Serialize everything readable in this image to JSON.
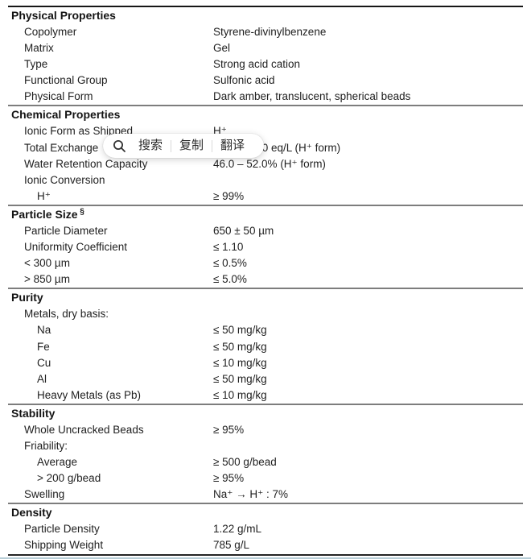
{
  "popup": {
    "items": [
      {
        "label": "搜索"
      },
      {
        "label": "复制"
      },
      {
        "label": "翻译"
      }
    ]
  },
  "table": {
    "sections": [
      {
        "title": "Physical Properties",
        "rows": [
          {
            "label": "Copolymer",
            "value": "Styrene-divinylbenzene"
          },
          {
            "label": "Matrix",
            "value": "Gel"
          },
          {
            "label": "Type",
            "value": "Strong acid cation"
          },
          {
            "label": "Functional Group",
            "value": "Sulfonic acid"
          },
          {
            "label": "Physical Form",
            "value": "Dark amber, translucent, spherical beads"
          }
        ]
      },
      {
        "title": "Chemical Properties",
        "rows": [
          {
            "label": "Ionic Form as Shipped",
            "value": "H⁺"
          },
          {
            "label": "Total Exchange",
            "value": ".0 eq/L (H⁺ form)",
            "value_x": 312
          },
          {
            "label": "Water Retention Capacity",
            "value": "46.0 – 52.0% (H⁺ form)"
          },
          {
            "label": "Ionic Conversion",
            "value": ""
          },
          {
            "label": "H⁺",
            "value": "≥ 99%",
            "indent": 2
          }
        ]
      },
      {
        "title": "Particle Size",
        "title_sup": "§",
        "rows": [
          {
            "label": "Particle Diameter",
            "value": "650 ± 50 µm"
          },
          {
            "label": "Uniformity Coefficient",
            "value": "≤ 1.10"
          },
          {
            "label": "< 300 µm",
            "value": "≤ 0.5%"
          },
          {
            "label": "> 850 µm",
            "value": "≤ 5.0%"
          }
        ]
      },
      {
        "title": "Purity",
        "rows": [
          {
            "label": "Metals, dry basis:",
            "value": ""
          },
          {
            "label": "Na",
            "value": "≤ 50 mg/kg",
            "indent": 2
          },
          {
            "label": "Fe",
            "value": "≤ 50 mg/kg",
            "indent": 2
          },
          {
            "label": "Cu",
            "value": "≤ 10 mg/kg",
            "indent": 2
          },
          {
            "label": "Al",
            "value": "≤ 50 mg/kg",
            "indent": 2
          },
          {
            "label": "Heavy Metals (as Pb)",
            "value": "≤ 10 mg/kg",
            "indent": 2
          }
        ]
      },
      {
        "title": "Stability",
        "rows": [
          {
            "label": "Whole Uncracked Beads",
            "value": "≥ 95%"
          },
          {
            "label": "Friability:",
            "value": ""
          },
          {
            "label": "Average",
            "value": "≥ 500 g/bead",
            "indent": 2
          },
          {
            "label": "> 200 g/bead",
            "value": "≥ 95%",
            "indent": 2
          },
          {
            "label": "Swelling",
            "value": "Na⁺ → H⁺ : 7%"
          }
        ]
      },
      {
        "title": "Density",
        "rows": [
          {
            "label": "Particle Density",
            "value": "1.22 g/mL"
          },
          {
            "label": "Shipping Weight",
            "value": "785 g/L"
          }
        ]
      }
    ]
  }
}
